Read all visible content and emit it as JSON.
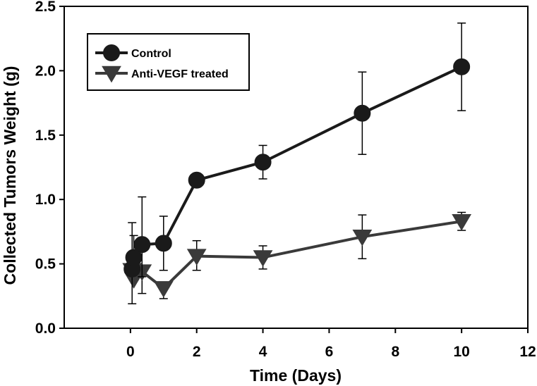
{
  "chart_data": {
    "type": "line",
    "title": "",
    "xlabel": "Time (Days)",
    "ylabel": "Collected Tumors Weight (g)",
    "xlim": [
      -2,
      12
    ],
    "ylim": [
      0,
      2.5
    ],
    "xticks": [
      0,
      2,
      4,
      6,
      8,
      10,
      12
    ],
    "xtick_labels": [
      "0",
      "2",
      "4",
      "6",
      "8",
      "10",
      "12"
    ],
    "yticks": [
      0,
      0.5,
      1.0,
      1.5,
      2.0,
      2.5
    ],
    "ytick_labels": [
      "0.0",
      "0.5",
      "1.0",
      "1.5",
      "2.0",
      "2.5"
    ],
    "legend_position": "top-left",
    "series": [
      {
        "name": "Control",
        "marker": "circle",
        "color": "#1a1a1a",
        "x": [
          0.05,
          0.1,
          0.35,
          1,
          2,
          4,
          7,
          10
        ],
        "y": [
          0.46,
          0.55,
          0.65,
          0.66,
          1.15,
          1.29,
          1.67,
          2.03
        ],
        "err_high": [
          0.36,
          0.17,
          0.37,
          0.21,
          0.0,
          0.13,
          0.32,
          0.34
        ],
        "err_low": [
          0.27,
          0.09,
          0.25,
          0.21,
          0.0,
          0.13,
          0.32,
          0.34
        ]
      },
      {
        "name": "Anti-VEGF treated",
        "marker": "triangle-down",
        "color": "#3a3a3a",
        "x": [
          0.05,
          0.1,
          0.35,
          1,
          2,
          4,
          7,
          10
        ],
        "y": [
          0.45,
          0.38,
          0.44,
          0.31,
          0.56,
          0.55,
          0.71,
          0.83
        ],
        "err_high": [
          0.0,
          0.0,
          0.0,
          0.0,
          0.12,
          0.09,
          0.17,
          0.07
        ],
        "err_low": [
          0.0,
          0.0,
          0.17,
          0.08,
          0.11,
          0.09,
          0.17,
          0.07
        ]
      }
    ]
  }
}
